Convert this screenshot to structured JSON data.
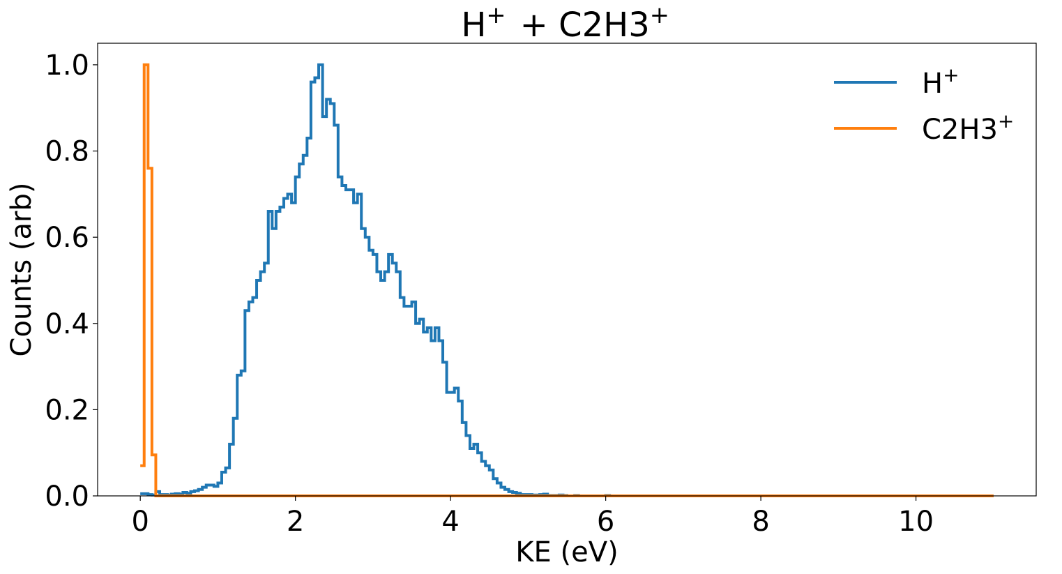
{
  "chart_data": {
    "type": "line",
    "title": "H$^+$ + C2H3$^+$",
    "xlabel": "KE (eV)",
    "ylabel": "Counts (arb)",
    "xlim": [
      -0.55,
      11.55
    ],
    "ylim": [
      0.0,
      1.05
    ],
    "xticks": [
      0,
      2,
      4,
      6,
      8,
      10
    ],
    "xtick_labels": [
      "0",
      "2",
      "4",
      "6",
      "8",
      "10"
    ],
    "yticks": [
      0.0,
      0.2,
      0.4,
      0.6,
      0.8,
      1.0
    ],
    "ytick_labels": [
      "0.0",
      "0.2",
      "0.4",
      "0.6",
      "0.8",
      "1.0"
    ],
    "grid": false,
    "legend_position": "top-right",
    "series": [
      {
        "name": "H$^+$",
        "color": "#1f77b4",
        "drawstyle": "steps",
        "x": [
          0.0,
          0.05,
          0.1,
          0.15,
          0.2,
          0.25,
          0.3,
          0.35,
          0.4,
          0.45,
          0.5,
          0.55,
          0.6,
          0.65,
          0.7,
          0.75,
          0.8,
          0.85,
          0.9,
          0.95,
          1.0,
          1.05,
          1.1,
          1.15,
          1.2,
          1.25,
          1.3,
          1.35,
          1.4,
          1.45,
          1.5,
          1.55,
          1.6,
          1.65,
          1.7,
          1.75,
          1.8,
          1.85,
          1.9,
          1.95,
          2.0,
          2.05,
          2.1,
          2.15,
          2.2,
          2.25,
          2.3,
          2.35,
          2.4,
          2.45,
          2.5,
          2.55,
          2.6,
          2.65,
          2.7,
          2.75,
          2.8,
          2.85,
          2.9,
          2.95,
          3.0,
          3.05,
          3.1,
          3.15,
          3.2,
          3.25,
          3.3,
          3.35,
          3.4,
          3.45,
          3.5,
          3.55,
          3.6,
          3.65,
          3.7,
          3.75,
          3.8,
          3.85,
          3.9,
          3.95,
          4.0,
          4.05,
          4.1,
          4.15,
          4.2,
          4.25,
          4.3,
          4.35,
          4.4,
          4.45,
          4.5,
          4.55,
          4.6,
          4.65,
          4.7,
          4.75,
          4.8,
          4.85,
          4.9,
          4.95,
          5.0,
          5.05,
          5.1,
          5.15,
          5.2,
          5.25,
          5.3,
          5.35,
          5.4,
          5.45,
          5.5,
          5.55,
          5.6,
          5.65,
          5.7,
          5.75,
          5.8,
          5.85,
          5.9,
          5.95,
          6.0,
          6.05,
          6.1,
          6.15,
          6.2,
          6.25,
          6.3,
          6.35,
          6.4,
          6.45,
          6.5,
          6.55,
          6.6,
          6.65,
          6.7,
          6.75,
          6.8,
          11.0
        ],
        "values": [
          0.005,
          0.005,
          0.003,
          0.002,
          0.01,
          0.003,
          0.003,
          0.002,
          0.004,
          0.005,
          0.004,
          0.008,
          0.006,
          0.01,
          0.012,
          0.015,
          0.02,
          0.025,
          0.025,
          0.022,
          0.03,
          0.055,
          0.065,
          0.12,
          0.18,
          0.28,
          0.29,
          0.43,
          0.45,
          0.46,
          0.5,
          0.52,
          0.54,
          0.66,
          0.62,
          0.66,
          0.67,
          0.69,
          0.7,
          0.68,
          0.74,
          0.77,
          0.79,
          0.83,
          0.96,
          0.97,
          1.0,
          0.88,
          0.92,
          0.91,
          0.86,
          0.74,
          0.72,
          0.71,
          0.71,
          0.68,
          0.7,
          0.62,
          0.6,
          0.57,
          0.56,
          0.52,
          0.5,
          0.52,
          0.56,
          0.54,
          0.52,
          0.46,
          0.44,
          0.44,
          0.45,
          0.4,
          0.41,
          0.38,
          0.39,
          0.36,
          0.39,
          0.36,
          0.31,
          0.24,
          0.24,
          0.25,
          0.22,
          0.17,
          0.14,
          0.11,
          0.12,
          0.1,
          0.08,
          0.07,
          0.06,
          0.04,
          0.03,
          0.02,
          0.015,
          0.01,
          0.008,
          0.006,
          0.003,
          0.003,
          0.003,
          0.002,
          0.002,
          0.003,
          0.004,
          0.001,
          0.001,
          0.001,
          0.002,
          0.001,
          0.0,
          0.0,
          0.001,
          0.0,
          0.0,
          0.0,
          0.0,
          0.0,
          0.0,
          0.0,
          0.001,
          0.0,
          0.0,
          0.0,
          0.0,
          0.0,
          0.0,
          0.0,
          0.0,
          0.0,
          0.0,
          0.0,
          0.0,
          0.0,
          0.0,
          0.0,
          0.0,
          0.0
        ]
      },
      {
        "name": "C2H3$^+$",
        "color": "#ff7f0e",
        "drawstyle": "steps",
        "x": [
          0.0,
          0.05,
          0.1,
          0.15,
          0.2,
          11.0
        ],
        "values": [
          0.07,
          1.0,
          0.76,
          0.095,
          0.0,
          0.0
        ]
      }
    ]
  }
}
